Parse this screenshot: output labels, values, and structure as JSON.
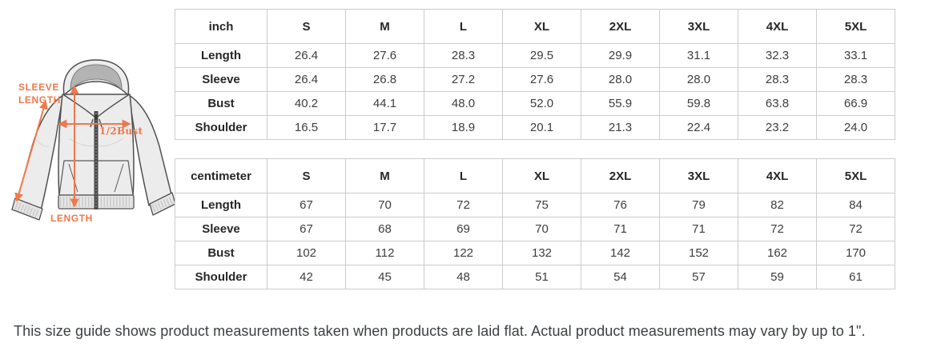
{
  "colors": {
    "accent_orange": "#F0784A",
    "table_border": "#cccccc",
    "header_text": "#272727",
    "value_text": "#3d3d3d",
    "footnote_text": "#3c4043",
    "garment_outline": "#4f4f4f",
    "garment_fill": "#ececec",
    "hood_inner_fill": "#b3b3b3",
    "zipper_fill": "#4a4a4a"
  },
  "diagram": {
    "subject": "zip-up hoodie flat sketch with measurement arrows",
    "accent_color": "#F0784A",
    "labels": {
      "sleeve_line1": "SLEEVE",
      "sleeve_line2": "LENGTH",
      "half_bust": "1/2Bust",
      "length": "LENGTH"
    }
  },
  "chart_data": [
    {
      "type": "table",
      "unit": "inch",
      "size_columns": [
        "S",
        "M",
        "L",
        "XL",
        "2XL",
        "3XL",
        "4XL",
        "5XL"
      ],
      "rows": [
        {
          "label": "Length",
          "values": [
            "26.4",
            "27.6",
            "28.3",
            "29.5",
            "29.9",
            "31.1",
            "32.3",
            "33.1"
          ]
        },
        {
          "label": "Sleeve",
          "values": [
            "26.4",
            "26.8",
            "27.2",
            "27.6",
            "28.0",
            "28.0",
            "28.3",
            "28.3"
          ]
        },
        {
          "label": "Bust",
          "values": [
            "40.2",
            "44.1",
            "48.0",
            "52.0",
            "55.9",
            "59.8",
            "63.8",
            "66.9"
          ]
        },
        {
          "label": "Shoulder",
          "values": [
            "16.5",
            "17.7",
            "18.9",
            "20.1",
            "21.3",
            "22.4",
            "23.2",
            "24.0"
          ]
        }
      ]
    },
    {
      "type": "table",
      "unit": "centimeter",
      "size_columns": [
        "S",
        "M",
        "L",
        "XL",
        "2XL",
        "3XL",
        "4XL",
        "5XL"
      ],
      "rows": [
        {
          "label": "Length",
          "values": [
            "67",
            "70",
            "72",
            "75",
            "76",
            "79",
            "82",
            "84"
          ]
        },
        {
          "label": "Sleeve",
          "values": [
            "67",
            "68",
            "69",
            "70",
            "71",
            "71",
            "72",
            "72"
          ]
        },
        {
          "label": "Bust",
          "values": [
            "102",
            "112",
            "122",
            "132",
            "142",
            "152",
            "162",
            "170"
          ]
        },
        {
          "label": "Shoulder",
          "values": [
            "42",
            "45",
            "48",
            "51",
            "54",
            "57",
            "59",
            "61"
          ]
        }
      ]
    }
  ],
  "footnote": "This size guide shows product measurements taken when products are laid flat. Actual product measurements may vary by up to 1\"."
}
